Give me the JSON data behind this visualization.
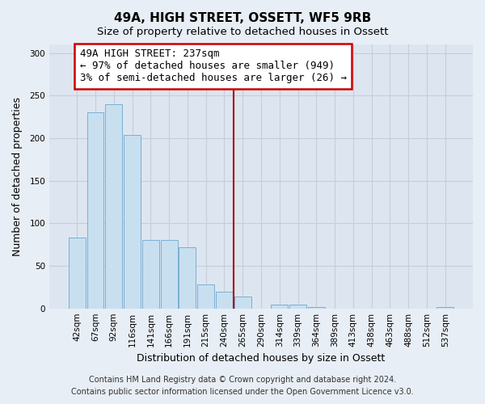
{
  "title": "49A, HIGH STREET, OSSETT, WF5 9RB",
  "subtitle": "Size of property relative to detached houses in Ossett",
  "xlabel": "Distribution of detached houses by size in Ossett",
  "ylabel": "Number of detached properties",
  "bar_labels": [
    "42sqm",
    "67sqm",
    "92sqm",
    "116sqm",
    "141sqm",
    "166sqm",
    "191sqm",
    "215sqm",
    "240sqm",
    "265sqm",
    "290sqm",
    "314sqm",
    "339sqm",
    "364sqm",
    "389sqm",
    "413sqm",
    "438sqm",
    "463sqm",
    "488sqm",
    "512sqm",
    "537sqm"
  ],
  "bar_values": [
    83,
    230,
    240,
    204,
    80,
    80,
    72,
    28,
    20,
    14,
    0,
    4,
    4,
    2,
    0,
    0,
    0,
    0,
    0,
    0,
    2
  ],
  "bar_color": "#c8dff0",
  "bar_edge_color": "#7aafd4",
  "vline_color": "#aa0000",
  "annotation_title": "49A HIGH STREET: 237sqm",
  "annotation_line1": "← 97% of detached houses are smaller (949)",
  "annotation_line2": "3% of semi-detached houses are larger (26) →",
  "annotation_box_color": "#ffffff",
  "annotation_box_edge": "#cc0000",
  "ylim": [
    0,
    310
  ],
  "yticks": [
    0,
    50,
    100,
    150,
    200,
    250,
    300
  ],
  "footer1": "Contains HM Land Registry data © Crown copyright and database right 2024.",
  "footer2": "Contains public sector information licensed under the Open Government Licence v3.0.",
  "bg_color": "#e8eef5",
  "plot_bg_color": "#dde6f0",
  "grid_color": "#c5cfd8",
  "title_fontsize": 11,
  "subtitle_fontsize": 9.5,
  "axis_label_fontsize": 9,
  "tick_fontsize": 7.5,
  "footer_fontsize": 7,
  "annot_fontsize": 9
}
